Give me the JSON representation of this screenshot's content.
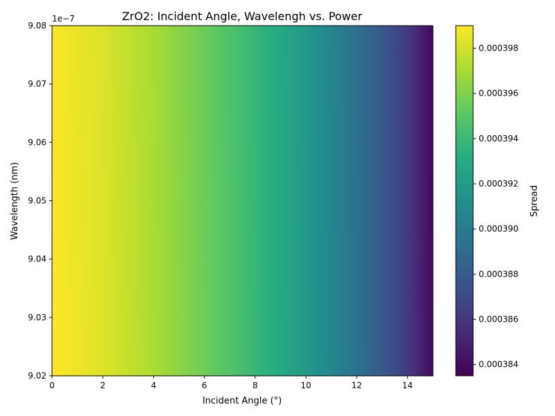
{
  "chart_data": {
    "type": "heatmap",
    "title": "ZrO2: Incident Angle, Wavelengh vs. Power",
    "xlabel": "Incident Angle (°)",
    "ylabel": "Wavelength (nm)",
    "xlim": [
      0,
      15
    ],
    "ylim": [
      9.02e-07,
      9.08e-07
    ],
    "y_offset_label": "1e−7",
    "x_ticks": [
      0,
      2,
      4,
      6,
      8,
      10,
      12,
      14
    ],
    "x_tick_labels": [
      "0",
      "2",
      "4",
      "6",
      "8",
      "10",
      "12",
      "14"
    ],
    "y_ticks": [
      9.02e-07,
      9.03e-07,
      9.04e-07,
      9.05e-07,
      9.06e-07,
      9.07e-07,
      9.08e-07
    ],
    "y_tick_labels": [
      "9.02",
      "9.03",
      "9.04",
      "9.05",
      "9.06",
      "9.07",
      "9.08"
    ],
    "colormap": "viridis",
    "colorbar": {
      "label": "Spread",
      "range": [
        0.0003835,
        0.000399
      ],
      "ticks": [
        0.000384,
        0.000386,
        0.000388,
        0.00039,
        0.000392,
        0.000394,
        0.000396,
        0.000398
      ],
      "tick_labels": [
        "0.000384",
        "0.000386",
        "0.000388",
        "0.000390",
        "0.000392",
        "0.000394",
        "0.000396",
        "0.000398"
      ]
    },
    "profile_description": "value decreases with incident angle, nearly constant along wavelength",
    "angle_profile": {
      "x": [
        0,
        2,
        4,
        6,
        8,
        10,
        12,
        13,
        14,
        15
      ],
      "values": [
        0.0003989,
        0.0003982,
        0.000397,
        0.0003955,
        0.0003938,
        0.0003918,
        0.0003893,
        0.0003878,
        0.0003861,
        0.0003838
      ]
    },
    "wavelength_variation": [
      1e-07,
      0.0
    ]
  }
}
